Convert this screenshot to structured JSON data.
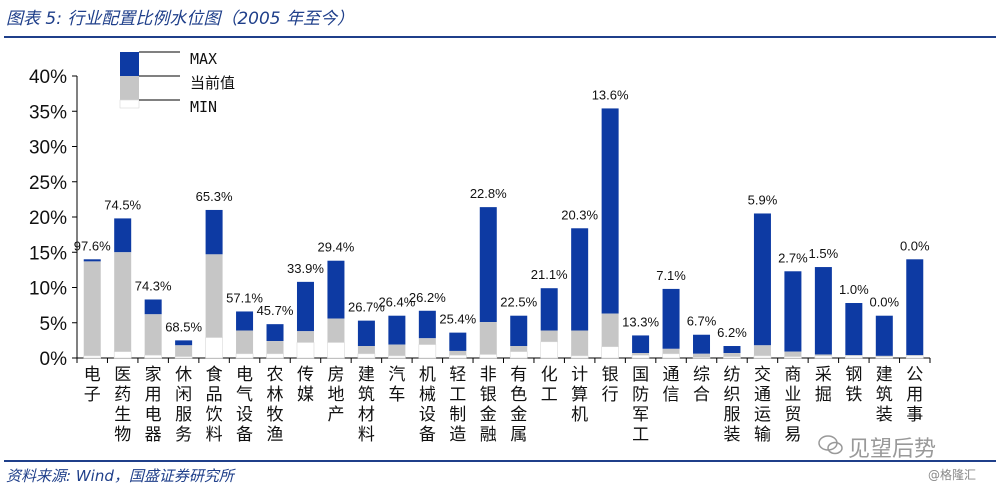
{
  "header": {
    "title": "图表 5: 行业配置比例水位图（2005 年至今）"
  },
  "footer": {
    "source": "资料来源: Wind，国盛证券研究所",
    "watermark": "见望后势",
    "watermark_sub": "@格隆汇"
  },
  "colors": {
    "max": "#0d3aa3",
    "current": "#c6c6c6",
    "min": "#ffffff",
    "rule": "#1f3f8a"
  },
  "chart_data": {
    "type": "bar",
    "description_kind": "floating range bars (MIN to MAX) with current value segment",
    "ylim": [
      0,
      40
    ],
    "yticks": [
      "0%",
      "5%",
      "10%",
      "15%",
      "20%",
      "25%",
      "30%",
      "35%",
      "40%"
    ],
    "legend": [
      "MAX",
      "当前值",
      "MIN"
    ],
    "categories": [
      "电子",
      "医药生物",
      "家用电器",
      "休闲服务",
      "食品饮料",
      "电气设备",
      "农林牧渔",
      "传媒",
      "房地产",
      "建筑材料",
      "汽车",
      "机械设备",
      "轻工制造",
      "非银金融",
      "有色金属",
      "化工",
      "计算机",
      "银行",
      "国防军工",
      "通信",
      "综合",
      "纺织服装",
      "交通运输",
      "商业贸易",
      "采掘",
      "钢铁",
      "建筑装饰",
      "公用事业"
    ],
    "category_labels": [
      "电子",
      "医药生物",
      "家用电器",
      "休闲服务",
      "食品饮料",
      "电气设备",
      "农林牧渔",
      "传媒",
      "房地产",
      "建筑材料",
      "汽车",
      "机械设备",
      "轻工制造",
      "非银金融",
      "有色金属",
      "化工",
      "计算机",
      "银行",
      "国防军工",
      "通信",
      "综合",
      "纺织服装",
      "交通运输",
      "商业贸易",
      "采掘",
      "钢铁",
      "建筑装",
      "公用事"
    ],
    "max": [
      14.0,
      19.8,
      8.3,
      2.5,
      21.0,
      6.6,
      4.8,
      10.8,
      13.8,
      5.3,
      6.0,
      6.7,
      3.6,
      21.4,
      6.0,
      9.9,
      18.4,
      35.4,
      3.2,
      9.8,
      3.3,
      1.7,
      20.5,
      12.3,
      12.9,
      7.8,
      6.0,
      14.0
    ],
    "current": [
      13.7,
      15.0,
      6.2,
      1.8,
      14.7,
      3.9,
      2.4,
      3.8,
      5.6,
      1.7,
      1.9,
      2.8,
      1.0,
      5.1,
      1.7,
      3.9,
      3.9,
      6.3,
      0.7,
      1.3,
      0.6,
      0.7,
      1.8,
      0.9,
      0.5,
      0.4,
      0.3,
      0.4
    ],
    "min": [
      0.3,
      0.9,
      0.4,
      0.2,
      2.9,
      0.6,
      0.6,
      2.2,
      2.2,
      0.6,
      0.3,
      1.9,
      0.4,
      0.5,
      0.9,
      2.3,
      0.3,
      1.6,
      0.4,
      0.6,
      0.1,
      0.2,
      0.3,
      0.2,
      0.3,
      0.3,
      0.2,
      0.3
    ],
    "percentile_labels": [
      "97.6%",
      "74.5%",
      "74.3%",
      "68.5%",
      "65.3%",
      "57.1%",
      "45.7%",
      "33.9%",
      "29.4%",
      "26.7%",
      "26.4%",
      "26.2%",
      "25.4%",
      "22.8%",
      "22.5%",
      "21.1%",
      "20.3%",
      "13.6%",
      "13.3%",
      "7.1%",
      "6.7%",
      "6.2%",
      "5.9%",
      "2.7%",
      "1.5%",
      "1.0%",
      "0.0%",
      "0.0%"
    ]
  }
}
